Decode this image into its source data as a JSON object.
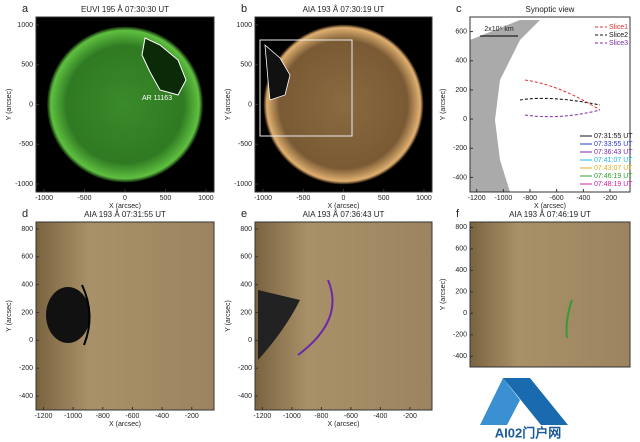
{
  "panels": [
    {
      "label": "a",
      "title": "EUVI 195 Å 07:30:30 UT",
      "annotation": "AR 11163",
      "xlabel": "X (arcsec)",
      "ylabel": "Y (arcsec)",
      "xlim": [
        -1100,
        1100
      ],
      "ylim": [
        -1100,
        1100
      ],
      "xticks": [
        -1000,
        -500,
        0,
        500,
        1000
      ],
      "yticks": [
        -1000,
        -500,
        0,
        500,
        1000
      ]
    },
    {
      "label": "b",
      "title": "AIA 193 Å 07:30:19 UT",
      "xlabel": "X (arcsec)",
      "ylabel": "Y (arcsec)",
      "xlim": [
        -1100,
        1100
      ],
      "ylim": [
        -1100,
        1100
      ],
      "xticks": [
        -1000,
        -500,
        0,
        500,
        1000
      ],
      "yticks": [
        -1000,
        -500,
        0,
        500,
        1000
      ]
    },
    {
      "label": "c",
      "title": "Synoptic view",
      "scale_bar": "2x10⁵ km",
      "xlabel": "X (arcsec)",
      "ylabel": "Y (arcsec)",
      "xlim": [
        -1250,
        -50
      ],
      "ylim": [
        -500,
        700
      ],
      "xticks": [
        -1200,
        -1000,
        -800,
        -600,
        -400,
        -200
      ],
      "yticks": [
        -400,
        -200,
        0,
        200,
        400,
        600
      ],
      "slices": [
        {
          "name": "Slice1",
          "color": "#e03030"
        },
        {
          "name": "Slice2",
          "color": "#111111"
        },
        {
          "name": "Slice3",
          "color": "#7a2aa8"
        }
      ],
      "times": [
        {
          "name": "07:31:55 UT",
          "color": "#111111"
        },
        {
          "name": "07:33:55 UT",
          "color": "#2a3ad0"
        },
        {
          "name": "07:36:43 UT",
          "color": "#7a2aa8"
        },
        {
          "name": "07:41:07 UT",
          "color": "#20b8d8"
        },
        {
          "name": "07:43:07 UT",
          "color": "#e0b020"
        },
        {
          "name": "07:46:19 UT",
          "color": "#30a030"
        },
        {
          "name": "07:48:19 UT",
          "color": "#d020a0"
        }
      ]
    },
    {
      "label": "d",
      "title": "AIA 193 Å 07:31:55 UT",
      "xlabel": "X (arcsec)",
      "ylabel": "Y (arcsec)",
      "xlim": [
        -1250,
        -50
      ],
      "ylim": [
        -500,
        850
      ],
      "xticks": [
        -1200,
        -1000,
        -800,
        -600,
        -400,
        -200
      ],
      "yticks": [
        -400,
        -200,
        0,
        200,
        400,
        600,
        800
      ]
    },
    {
      "label": "e",
      "title": "AIA 193 Å 07:36:43 UT",
      "xlabel": "X (arcsec)",
      "ylabel": "Y (arcsec)",
      "xlim": [
        -1250,
        -50
      ],
      "ylim": [
        -500,
        850
      ],
      "xticks": [
        -1200,
        -1000,
        -800,
        -600,
        -400,
        -200
      ],
      "yticks": [
        -400,
        -200,
        0,
        200,
        400,
        600,
        800
      ]
    },
    {
      "label": "f",
      "title": "AIA 193 Å 07:46:19 UT",
      "ylabel": "Y (arcsec)",
      "ylim": [
        -500,
        850
      ],
      "yticks": [
        -400,
        -200,
        0,
        200,
        400,
        600,
        800
      ]
    }
  ],
  "watermark": "AI02门户网"
}
